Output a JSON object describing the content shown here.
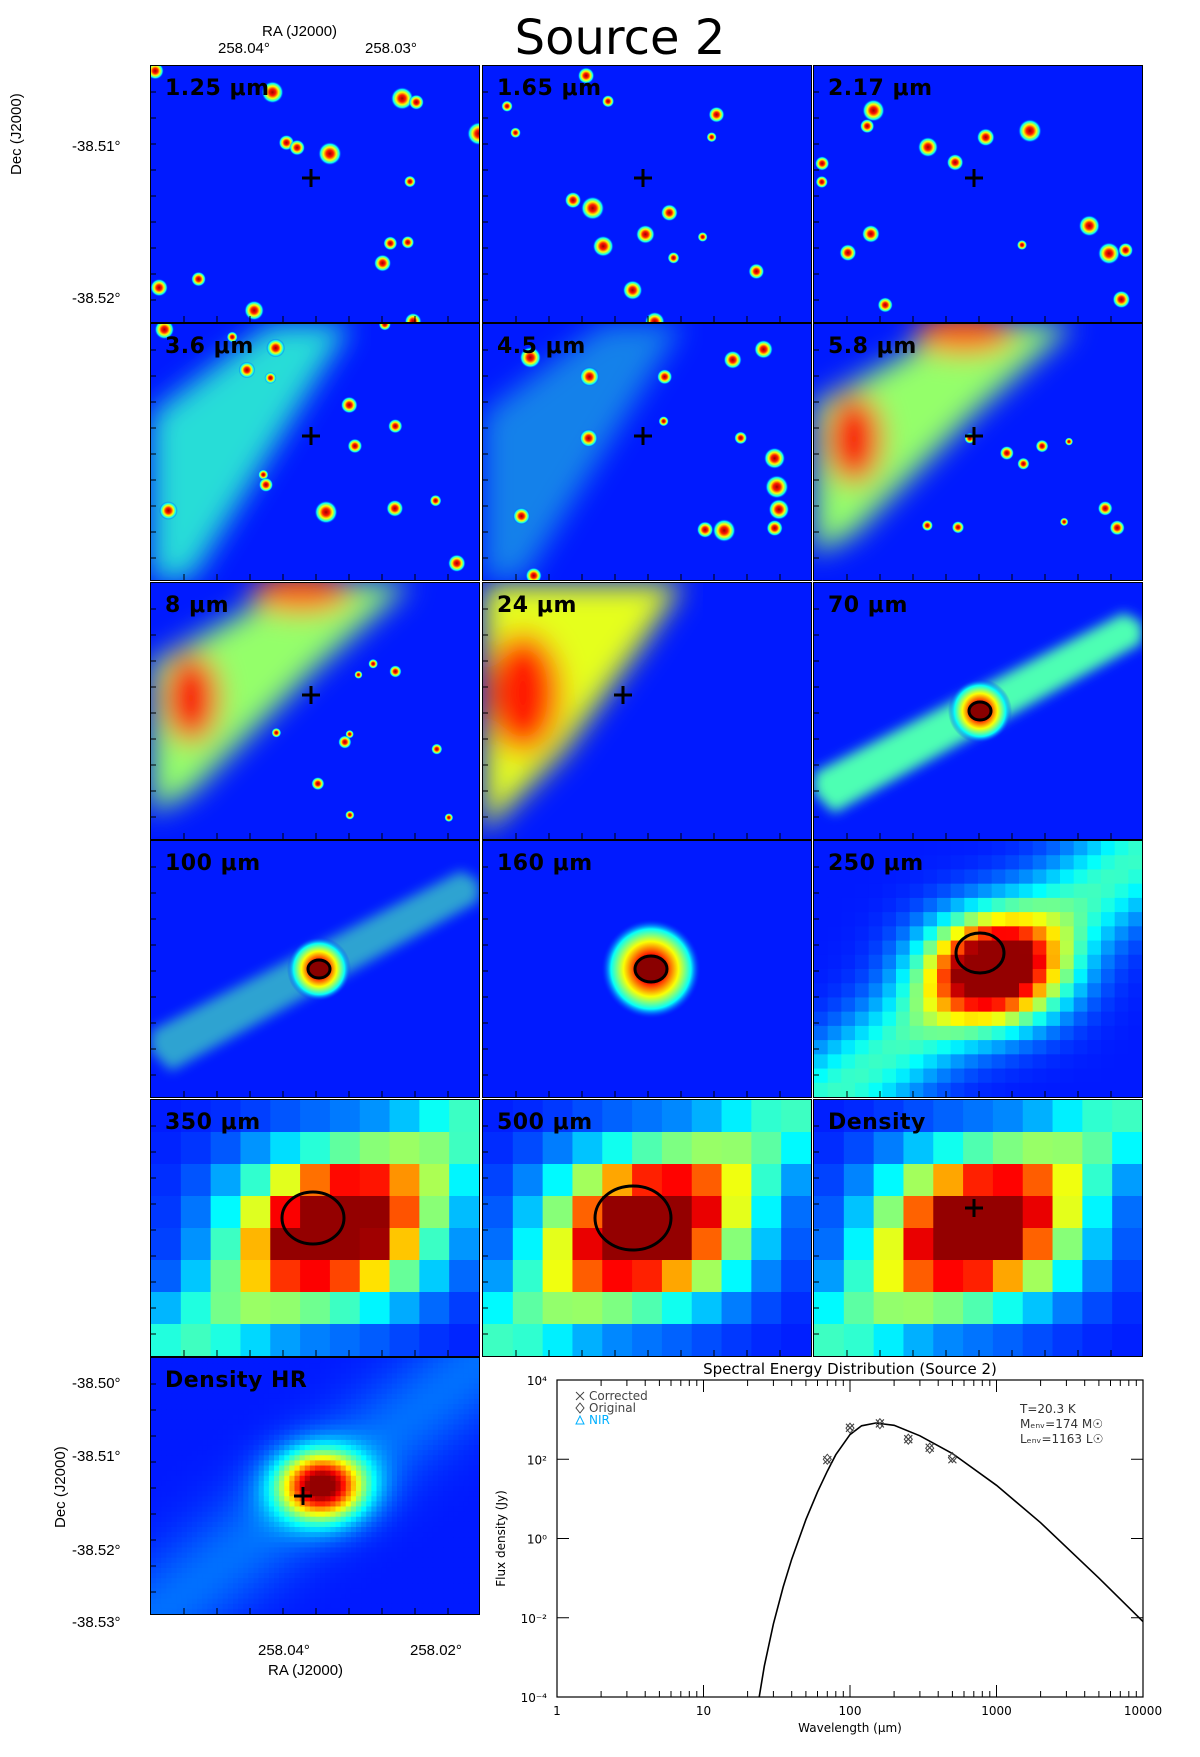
{
  "figure": {
    "title": "Source 2",
    "top_axis": {
      "label": "RA (J2000)",
      "ticks": [
        "258.04°",
        "258.03°"
      ]
    },
    "left_axis_top": {
      "label": "Dec (J2000)",
      "ticks": [
        "-38.51°",
        "-38.52°"
      ]
    },
    "bottom_left_panel": {
      "x_label": "RA (J2000)",
      "x_ticks": [
        "258.04°",
        "258.02°"
      ],
      "y_label": "Dec (J2000)",
      "y_ticks": [
        "-38.50°",
        "-38.51°",
        "-38.52°",
        "-38.53°"
      ]
    },
    "panels": [
      {
        "label": "1.25 μm",
        "kind": "nir",
        "seed": 1
      },
      {
        "label": "1.65 μm",
        "kind": "nir",
        "seed": 2
      },
      {
        "label": "2.17 μm",
        "kind": "nir",
        "seed": 3
      },
      {
        "label": "3.6 μm",
        "kind": "irac",
        "seed": 4
      },
      {
        "label": "4.5 μm",
        "kind": "irac2",
        "seed": 5
      },
      {
        "label": "5.8 μm",
        "kind": "irac3",
        "seed": 6
      },
      {
        "label": "8 μm",
        "kind": "irac4",
        "seed": 7
      },
      {
        "label": "24 μm",
        "kind": "mips",
        "seed": 8
      },
      {
        "label": "70 μm",
        "kind": "pacs70",
        "seed": 9
      },
      {
        "label": "100 μm",
        "kind": "pacs100",
        "seed": 10
      },
      {
        "label": "160 μm",
        "kind": "pacs160",
        "seed": 11
      },
      {
        "label": "250 μm",
        "kind": "spire250",
        "seed": 12
      },
      {
        "label": "350 μm",
        "kind": "spire350",
        "seed": 13
      },
      {
        "label": "500 μm",
        "kind": "spire500",
        "seed": 14
      },
      {
        "label": "Density",
        "kind": "density",
        "seed": 15
      },
      {
        "label": "Density HR",
        "kind": "densityhr",
        "seed": 16
      }
    ],
    "colors": {
      "cross": "#000000",
      "ellipse": "#000000"
    }
  },
  "chart_data": {
    "type": "scatter",
    "title": "Spectral Energy Distribution (Source 2)",
    "xlabel": "Wavelength (μm)",
    "ylabel": "Flux density (Jy)",
    "xscale": "log",
    "yscale": "log",
    "xlim": [
      1,
      10000
    ],
    "ylim": [
      0.0001,
      10000
    ],
    "x_ticks": [
      "1",
      "10",
      "100",
      "1000",
      "10000"
    ],
    "y_ticks": [
      "10⁻⁴",
      "10⁻²",
      "10⁰",
      "10²",
      "10⁴"
    ],
    "legend": [
      "Corrected",
      "Original",
      "NIR"
    ],
    "legend_colors": [
      "#444444",
      "#444444",
      "#00b0ff"
    ],
    "annotation": [
      "T=20.3 K",
      "Mₑₙᵥ=174 M☉",
      "Lₑₙᵥ=1163 L☉"
    ],
    "series": [
      {
        "name": "Corrected",
        "marker": "x",
        "x": [
          70,
          100,
          160,
          250,
          350,
          500
        ],
        "y": [
          95,
          620,
          800,
          320,
          195,
          100
        ]
      },
      {
        "name": "Original",
        "marker": "diamond",
        "x": [
          70,
          100,
          160,
          250,
          350,
          500
        ],
        "y": [
          100,
          610,
          790,
          320,
          190,
          110
        ]
      }
    ],
    "fit_curve": {
      "x": [
        24,
        26,
        30,
        35,
        40,
        50,
        60,
        70,
        80,
        100,
        120,
        150,
        200,
        300,
        500,
        1000,
        2000,
        5000,
        10000
      ],
      "y": [
        0.0001,
        0.0006,
        0.007,
        0.06,
        0.3,
        3,
        15,
        50,
        130,
        420,
        700,
        820,
        720,
        390,
        140,
        22,
        2.5,
        0.1,
        0.008
      ]
    }
  }
}
